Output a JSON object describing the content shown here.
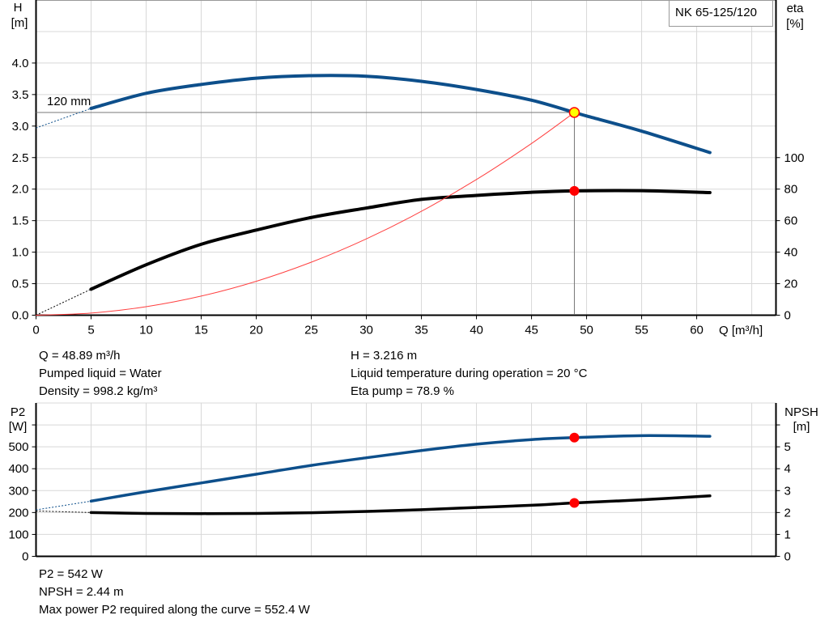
{
  "model": "NK 65-125/120",
  "impeller_label": "120 mm",
  "chart_data": [
    {
      "type": "line",
      "xlabel": "Q [m³/h]",
      "ylabel": [
        "H",
        "[m]"
      ],
      "y2label": [
        "eta",
        "[%]"
      ],
      "xlim": [
        0,
        67.2
      ],
      "ylim": [
        0,
        5.0
      ],
      "y2lim": [
        0,
        200
      ],
      "grid": true,
      "xticks": [
        0,
        5,
        10,
        15,
        20,
        25,
        30,
        35,
        40,
        45,
        50,
        55,
        60
      ],
      "xgrid": [
        5,
        10,
        15,
        20,
        25,
        30,
        35,
        40,
        45,
        50,
        55,
        60,
        65
      ],
      "yticks": [
        "0.0",
        "0.5",
        "1.0",
        "1.5",
        "2.0",
        "2.5",
        "3.0",
        "3.5",
        "4.0"
      ],
      "ygrid": [
        0.5,
        1,
        1.5,
        2,
        2.5,
        3,
        3.5,
        4,
        4.5
      ],
      "y2ticks": [
        0,
        20,
        40,
        60,
        80,
        100
      ],
      "series": [
        {
          "id": "H",
          "axis": "left",
          "color": "#0d4f8b",
          "x": [
            5,
            10,
            15,
            20,
            25,
            30,
            35,
            40,
            45,
            48.89,
            50,
            55,
            61.2
          ],
          "y": [
            3.28,
            3.52,
            3.66,
            3.76,
            3.8,
            3.79,
            3.71,
            3.58,
            3.41,
            3.216,
            3.16,
            2.92,
            2.58
          ],
          "extrapolation": {
            "x": [
              0,
              5
            ],
            "y": [
              2.97,
              3.28
            ]
          }
        },
        {
          "id": "eta",
          "axis": "right",
          "color": "#000000",
          "x": [
            5,
            10,
            15,
            20,
            25,
            30,
            35,
            40,
            45,
            48.89,
            55,
            61.2
          ],
          "y": [
            16.5,
            32,
            45,
            54,
            62,
            68,
            73.5,
            76,
            78,
            78.9,
            79,
            77.8
          ],
          "extrapolation": {
            "x": [
              0,
              5
            ],
            "y": [
              0,
              16.5
            ]
          }
        },
        {
          "id": "system",
          "axis": "left",
          "color": "#ff4040",
          "equation": "H = 0.001345 * Q^2",
          "x": [
            0,
            5,
            10,
            15,
            20,
            25,
            30,
            35,
            40,
            45,
            48.89
          ],
          "y": [
            0,
            0.034,
            0.135,
            0.303,
            0.538,
            0.841,
            1.211,
            1.648,
            2.152,
            2.724,
            3.216
          ]
        }
      ],
      "duty_point": {
        "Q": 48.89,
        "H": 3.216,
        "eta": 78.9,
        "h_marker_color": "#ffff00",
        "eta_marker_color": "#ff0000"
      }
    },
    {
      "type": "line",
      "ylabel": [
        "P2",
        "[W]"
      ],
      "y2label": [
        "NPSH",
        "[m]"
      ],
      "xlim": [
        0,
        67.2
      ],
      "ylim": [
        0,
        700
      ],
      "y2lim": [
        0,
        7
      ],
      "grid": true,
      "yticks": [
        0,
        100,
        200,
        300,
        400,
        500
      ],
      "y2ticks": [
        0,
        1,
        2,
        3,
        4,
        5
      ],
      "series": [
        {
          "id": "P2",
          "axis": "left",
          "color": "#0d4f8b",
          "x": [
            5,
            10,
            15,
            20,
            25,
            30,
            35,
            40,
            45,
            48.89,
            55,
            61.2
          ],
          "y": [
            252,
            295,
            335,
            375,
            415,
            450,
            483,
            512,
            533,
            542,
            551,
            548
          ],
          "extrapolation": {
            "x": [
              0,
              5
            ],
            "y": [
              212,
              252
            ]
          }
        },
        {
          "id": "NPSH",
          "axis": "right",
          "color": "#000000",
          "x": [
            5,
            10,
            15,
            20,
            25,
            30,
            35,
            40,
            45,
            48.89,
            55,
            61.2
          ],
          "y": [
            2.0,
            1.96,
            1.95,
            1.96,
            1.99,
            2.05,
            2.13,
            2.23,
            2.33,
            2.44,
            2.58,
            2.76
          ],
          "extrapolation": {
            "x": [
              0,
              5
            ],
            "y": [
              2.07,
              2.0
            ]
          }
        }
      ],
      "duty_point": {
        "Q": 48.89,
        "P2": 542,
        "NPSH": 2.44
      }
    }
  ],
  "info_top": {
    "q": "Q = 48.89 m³/h",
    "liquid": "Pumped liquid = Water",
    "density": "Density = 998.2 kg/m³",
    "h": "H = 3.216 m",
    "temp": "Liquid temperature during operation = 20 °C",
    "eta": "Eta pump = 78.9 %"
  },
  "info_bottom": {
    "p2": "P2 = 542 W",
    "npsh": "NPSH = 2.44 m",
    "max": "Max power P2 required along the curve = 552.4 W"
  }
}
